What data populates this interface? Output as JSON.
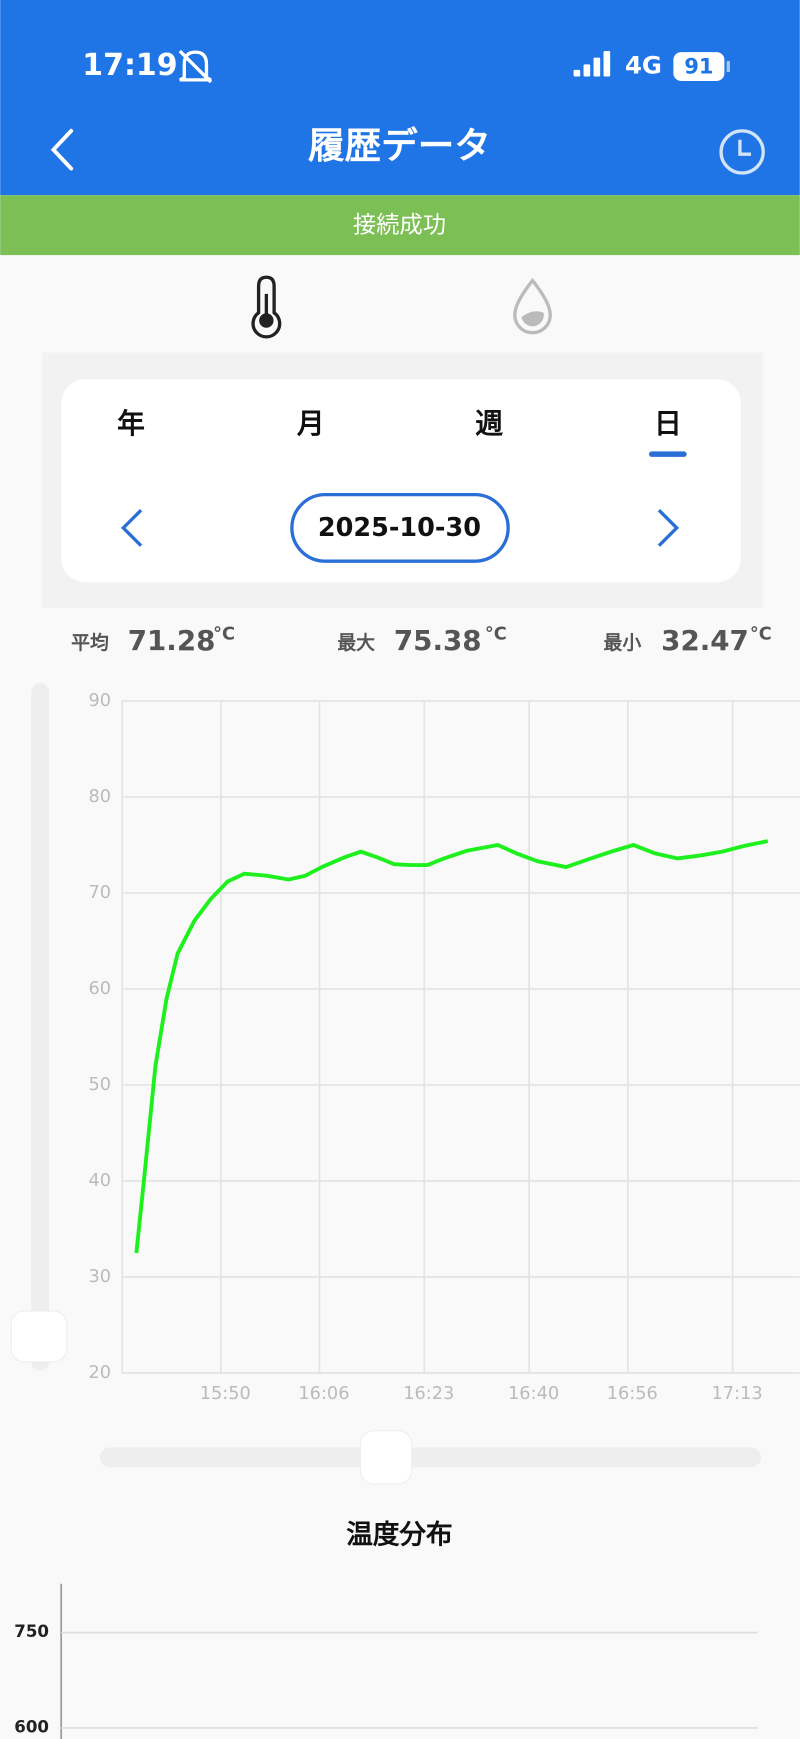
{
  "status": {
    "time": "17:19",
    "network": "4G",
    "battery": "91"
  },
  "header": {
    "title": "履歴データ"
  },
  "banner": "接続成功",
  "tabs": {
    "items": [
      "年",
      "月",
      "週",
      "日"
    ],
    "selected": 3
  },
  "date": "2025-10-30",
  "stats": [
    {
      "label": "平均",
      "value": 71.28,
      "unit": "°C"
    },
    {
      "label": "最大",
      "value": 75.38,
      "unit": "°C"
    },
    {
      "label": "最小",
      "value": 32.47,
      "unit": "°C"
    }
  ],
  "chart_data": [
    {
      "type": "line",
      "x": [
        936.3,
        937.6,
        939.4,
        941.2,
        943,
        945.7,
        948.4,
        951.1,
        953.8,
        957.4,
        961,
        963.7,
        966.4,
        970,
        972.7,
        975.4,
        978.1,
        980.8,
        983.5,
        986.2,
        989.9,
        994.9,
        998,
        1001.4,
        1006,
        1009.6,
        1013.3,
        1016.9,
        1020.5,
        1024,
        1027.7,
        1031.3,
        1034.9,
        1038.7
      ],
      "series": [
        {
          "name": "温度",
          "color": "#1ef01e",
          "values": [
            32.5,
            40.5,
            52,
            59,
            63.7,
            67.1,
            69.4,
            71.2,
            72,
            71.8,
            71.4,
            71.8,
            72.7,
            73.7,
            74.3,
            73.7,
            73,
            72.9,
            72.9,
            73.6,
            74.4,
            75,
            74.1,
            73.3,
            72.7,
            73.5,
            74.3,
            75,
            74.1,
            73.6,
            73.9,
            74.3,
            74.9,
            75.4
          ]
        }
      ],
      "xlim": [
        934,
        1044
      ],
      "xticks": [
        {
          "value": 950,
          "label": "15:50"
        },
        {
          "value": 966,
          "label": "16:06"
        },
        {
          "value": 983,
          "label": "16:23"
        },
        {
          "value": 1000,
          "label": "16:40"
        },
        {
          "value": 1016,
          "label": "16:56"
        },
        {
          "value": 1033,
          "label": "17:13"
        }
      ],
      "ylim": [
        20,
        90
      ],
      "yticks": [
        20,
        30,
        40,
        50,
        60,
        70,
        80,
        90
      ],
      "grid": true
    },
    {
      "type": "bar",
      "title": "温度分布",
      "ylim": [
        600,
        827
      ],
      "yticks": [
        600,
        750
      ],
      "grid": true
    }
  ]
}
